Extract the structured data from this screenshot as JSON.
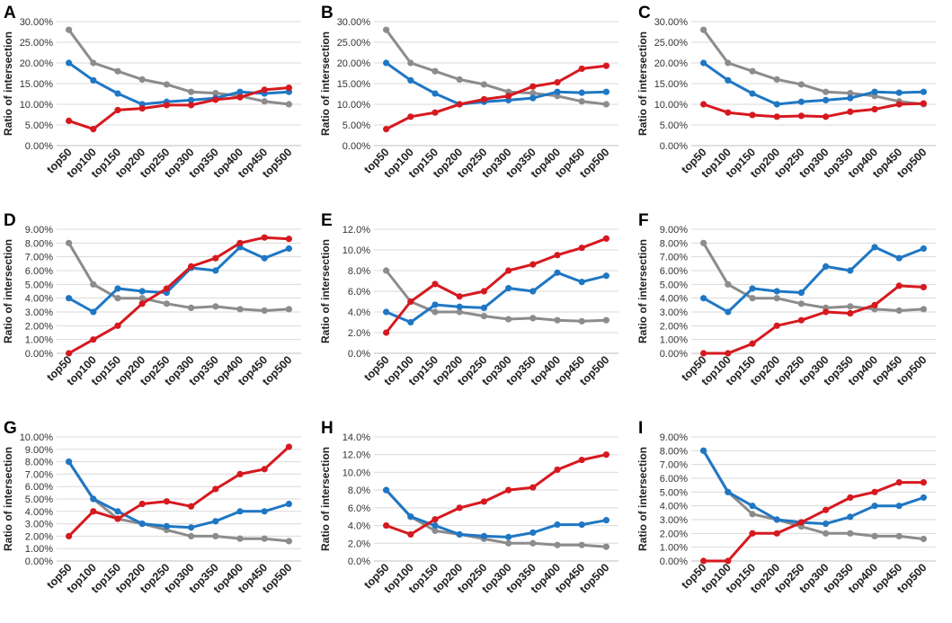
{
  "figure": {
    "colors": {
      "gray": "#8c8c8c",
      "blue": "#1f77c4",
      "red": "#d6191f"
    }
  },
  "chart_data": [
    {
      "panel": "A",
      "type": "line",
      "ylabel": "Ratio of intersection",
      "ylim": [
        0,
        0.3
      ],
      "ystep": 0.05,
      "ydecimals": 2,
      "grid": true,
      "categories": [
        "top50",
        "top100",
        "top150",
        "top200",
        "top250",
        "top300",
        "top350",
        "top400",
        "top450",
        "top500"
      ],
      "series": [
        {
          "color": "gray",
          "values": [
            0.28,
            0.2,
            0.18,
            0.16,
            0.148,
            0.13,
            0.127,
            0.12,
            0.107,
            0.1
          ]
        },
        {
          "color": "blue",
          "values": [
            0.2,
            0.158,
            0.126,
            0.1,
            0.106,
            0.11,
            0.115,
            0.13,
            0.126,
            0.13
          ]
        },
        {
          "color": "red",
          "values": [
            0.06,
            0.04,
            0.086,
            0.09,
            0.098,
            0.098,
            0.111,
            0.117,
            0.135,
            0.14
          ]
        }
      ]
    },
    {
      "panel": "B",
      "type": "line",
      "ylabel": "Ratio of intersection",
      "ylim": [
        0,
        0.3
      ],
      "ystep": 0.05,
      "ydecimals": 2,
      "grid": true,
      "categories": [
        "top50",
        "top100",
        "top150",
        "top200",
        "top250",
        "top300",
        "top350",
        "top400",
        "top450",
        "top500"
      ],
      "series": [
        {
          "color": "gray",
          "values": [
            0.28,
            0.2,
            0.18,
            0.16,
            0.148,
            0.13,
            0.127,
            0.12,
            0.107,
            0.1
          ]
        },
        {
          "color": "blue",
          "values": [
            0.2,
            0.158,
            0.126,
            0.1,
            0.106,
            0.11,
            0.115,
            0.13,
            0.128,
            0.13
          ]
        },
        {
          "color": "red",
          "values": [
            0.04,
            0.07,
            0.08,
            0.1,
            0.112,
            0.12,
            0.143,
            0.153,
            0.186,
            0.193
          ]
        }
      ]
    },
    {
      "panel": "C",
      "type": "line",
      "ylabel": "Ratio of intersection",
      "ylim": [
        0,
        0.3
      ],
      "ystep": 0.05,
      "ydecimals": 2,
      "grid": true,
      "categories": [
        "top50",
        "top100",
        "top150",
        "top200",
        "top250",
        "top300",
        "top350",
        "top400",
        "top450",
        "top500"
      ],
      "series": [
        {
          "color": "gray",
          "values": [
            0.28,
            0.2,
            0.18,
            0.16,
            0.148,
            0.13,
            0.127,
            0.12,
            0.107,
            0.1
          ]
        },
        {
          "color": "blue",
          "values": [
            0.2,
            0.158,
            0.126,
            0.1,
            0.106,
            0.11,
            0.115,
            0.13,
            0.128,
            0.13
          ]
        },
        {
          "color": "red",
          "values": [
            0.1,
            0.08,
            0.074,
            0.07,
            0.072,
            0.07,
            0.082,
            0.088,
            0.1,
            0.102
          ]
        }
      ]
    },
    {
      "panel": "D",
      "type": "line",
      "ylabel": "Ratio of intersection",
      "ylim": [
        0,
        0.09
      ],
      "ystep": 0.01,
      "ydecimals": 2,
      "grid": true,
      "categories": [
        "top50",
        "top100",
        "top150",
        "top200",
        "top250",
        "top300",
        "top350",
        "top400",
        "top450",
        "top500"
      ],
      "series": [
        {
          "color": "gray",
          "values": [
            0.08,
            0.05,
            0.04,
            0.04,
            0.036,
            0.033,
            0.034,
            0.032,
            0.031,
            0.032
          ]
        },
        {
          "color": "blue",
          "values": [
            0.04,
            0.03,
            0.047,
            0.045,
            0.044,
            0.062,
            0.06,
            0.077,
            0.069,
            0.076
          ]
        },
        {
          "color": "red",
          "values": [
            0.0,
            0.01,
            0.02,
            0.036,
            0.047,
            0.063,
            0.069,
            0.08,
            0.084,
            0.083
          ]
        }
      ]
    },
    {
      "panel": "E",
      "type": "line",
      "ylabel": "Ratio of intersection",
      "ylim": [
        0,
        0.12
      ],
      "ystep": 0.02,
      "ydecimals": 1,
      "grid": true,
      "categories": [
        "top50",
        "top100",
        "top150",
        "top200",
        "top250",
        "top300",
        "top350",
        "top400",
        "top450",
        "top500"
      ],
      "series": [
        {
          "color": "gray",
          "values": [
            0.08,
            0.05,
            0.04,
            0.04,
            0.036,
            0.033,
            0.034,
            0.032,
            0.031,
            0.032
          ]
        },
        {
          "color": "blue",
          "values": [
            0.04,
            0.03,
            0.047,
            0.045,
            0.044,
            0.063,
            0.06,
            0.078,
            0.069,
            0.075
          ]
        },
        {
          "color": "red",
          "values": [
            0.02,
            0.05,
            0.067,
            0.055,
            0.06,
            0.08,
            0.086,
            0.095,
            0.102,
            0.111
          ]
        }
      ]
    },
    {
      "panel": "F",
      "type": "line",
      "ylabel": "Ratio of intersection",
      "ylim": [
        0,
        0.09
      ],
      "ystep": 0.01,
      "ydecimals": 2,
      "grid": true,
      "categories": [
        "top50",
        "top100",
        "top150",
        "top200",
        "top250",
        "top300",
        "top350",
        "top400",
        "top450",
        "top500"
      ],
      "series": [
        {
          "color": "gray",
          "values": [
            0.08,
            0.05,
            0.04,
            0.04,
            0.036,
            0.033,
            0.034,
            0.032,
            0.031,
            0.032
          ]
        },
        {
          "color": "blue",
          "values": [
            0.04,
            0.03,
            0.047,
            0.045,
            0.044,
            0.063,
            0.06,
            0.077,
            0.069,
            0.076
          ]
        },
        {
          "color": "red",
          "values": [
            0.0,
            0.0,
            0.007,
            0.02,
            0.024,
            0.03,
            0.029,
            0.035,
            0.049,
            0.048
          ]
        }
      ]
    },
    {
      "panel": "G",
      "type": "line",
      "ylabel": "Ratio of intersection",
      "ylim": [
        0,
        0.1
      ],
      "ystep": 0.01,
      "ydecimals": 2,
      "grid": true,
      "categories": [
        "top50",
        "top100",
        "top150",
        "top200",
        "top250",
        "top300",
        "top350",
        "top400",
        "top450",
        "top500"
      ],
      "series": [
        {
          "color": "gray",
          "values": [
            0.08,
            0.05,
            0.034,
            0.03,
            0.025,
            0.02,
            0.02,
            0.018,
            0.018,
            0.016
          ]
        },
        {
          "color": "blue",
          "values": [
            0.08,
            0.05,
            0.04,
            0.03,
            0.028,
            0.027,
            0.032,
            0.04,
            0.04,
            0.046
          ]
        },
        {
          "color": "red",
          "values": [
            0.02,
            0.04,
            0.034,
            0.046,
            0.048,
            0.044,
            0.058,
            0.07,
            0.074,
            0.092
          ]
        }
      ]
    },
    {
      "panel": "H",
      "type": "line",
      "ylabel": "Ratio of intersection",
      "ylim": [
        0,
        0.14
      ],
      "ystep": 0.02,
      "ydecimals": 1,
      "grid": true,
      "categories": [
        "top50",
        "top100",
        "top150",
        "top200",
        "top250",
        "top300",
        "top350",
        "top400",
        "top450",
        "top500"
      ],
      "series": [
        {
          "color": "gray",
          "values": [
            0.08,
            0.05,
            0.034,
            0.03,
            0.025,
            0.02,
            0.02,
            0.018,
            0.018,
            0.016
          ]
        },
        {
          "color": "blue",
          "values": [
            0.08,
            0.05,
            0.04,
            0.03,
            0.028,
            0.027,
            0.032,
            0.041,
            0.041,
            0.046
          ]
        },
        {
          "color": "red",
          "values": [
            0.04,
            0.03,
            0.047,
            0.06,
            0.067,
            0.08,
            0.083,
            0.103,
            0.114,
            0.12
          ]
        }
      ]
    },
    {
      "panel": "I",
      "type": "line",
      "ylabel": "Ratio of intersection",
      "ylim": [
        0,
        0.09
      ],
      "ystep": 0.01,
      "ydecimals": 2,
      "grid": true,
      "categories": [
        "top50",
        "top100",
        "top150",
        "top200",
        "top250",
        "top300",
        "top350",
        "top400",
        "top450",
        "top500"
      ],
      "series": [
        {
          "color": "gray",
          "values": [
            0.08,
            0.05,
            0.034,
            0.03,
            0.025,
            0.02,
            0.02,
            0.018,
            0.018,
            0.016
          ]
        },
        {
          "color": "blue",
          "values": [
            0.08,
            0.05,
            0.04,
            0.03,
            0.028,
            0.027,
            0.032,
            0.04,
            0.04,
            0.046
          ]
        },
        {
          "color": "red",
          "values": [
            0.0,
            0.0,
            0.02,
            0.02,
            0.028,
            0.037,
            0.046,
            0.05,
            0.057,
            0.057
          ]
        }
      ]
    }
  ]
}
